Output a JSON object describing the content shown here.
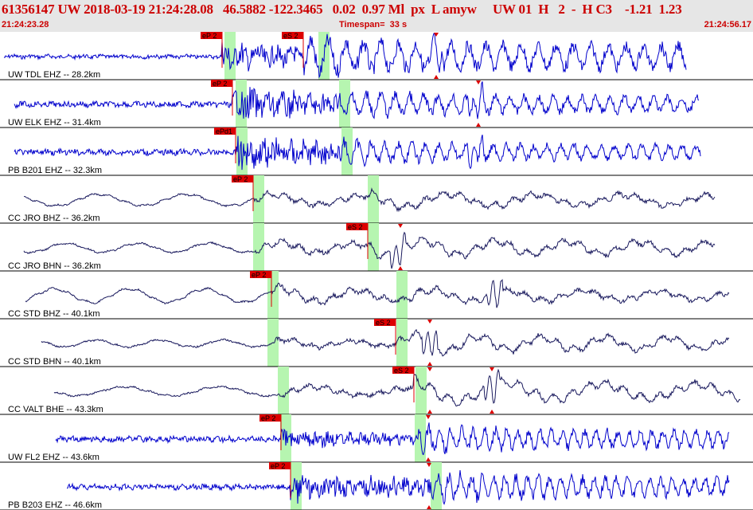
{
  "header": {
    "title": "61356147 UW 2018-03-19 21:24:28.08   46.5882 -122.3465   0.02  0.97 Ml  px  L amyw     UW 01  H   2  -  H C3    -1.21  1.23",
    "start_time": "21:24:23.28",
    "timespan": "Timespan=  33 s",
    "end_time": "21:24:56.17"
  },
  "colors": {
    "blue_trace": "#0000cc",
    "navy_trace": "#1a1a5e",
    "pick": "#dd0000",
    "window": "#b6f5b0",
    "header_text": "#cc0000"
  },
  "chart_data": {
    "type": "line",
    "title": "",
    "x_range": [
      0,
      946
    ],
    "channels": [
      {
        "label": "UW TDL EHZ -- 28.2km",
        "color": "blue",
        "start": 5,
        "end": 862,
        "p": 279,
        "s": 381,
        "amp": [
          3,
          22,
          30
        ],
        "period": 22,
        "bigs": 548,
        "picks": [
          {
            "type": "P",
            "x": 279,
            "text": "eP 2"
          },
          {
            "type": "S",
            "x": 381,
            "text": "eS 2"
          }
        ],
        "windows": [
          282,
          400
        ],
        "marks": [
          548
        ]
      },
      {
        "label": "UW ELK EHZ -- 31.4km",
        "color": "blue",
        "start": 18,
        "end": 878,
        "p": 292,
        "s": 425,
        "amp": [
          4,
          26,
          20
        ],
        "period": 18,
        "bigs": 598,
        "picks": [
          {
            "type": "P",
            "x": 292,
            "text": "eP 2"
          }
        ],
        "windows": [
          296,
          426
        ],
        "marks": [
          601
        ]
      },
      {
        "label": "PB B201 EHZ -- 32.3km",
        "color": "blue",
        "start": 18,
        "end": 880,
        "p": 296,
        "s": 430,
        "amp": [
          4,
          26,
          18
        ],
        "period": 17,
        "bigs": 598,
        "picks": [
          {
            "type": "P",
            "x": 296,
            "text": "ePd1"
          }
        ],
        "windows": [
          297,
          429
        ],
        "marks": []
      },
      {
        "label": "CC JRO BHZ -- 36.2km",
        "color": "navy",
        "start": 30,
        "end": 898,
        "p": 318,
        "s": 466,
        "amp": [
          10,
          12,
          14
        ],
        "period": 110,
        "bigs": 0,
        "picks": [
          {
            "type": "P",
            "x": 318,
            "text": "eP 2"
          }
        ],
        "windows": [
          318,
          462
        ],
        "marks": []
      },
      {
        "label": "CC JRO BHN -- 36.2km",
        "color": "navy",
        "start": 30,
        "end": 898,
        "p": 322,
        "s": 462,
        "amp": [
          8,
          12,
          16
        ],
        "period": 90,
        "bigs": 500,
        "picks": [
          {
            "type": "S",
            "x": 462,
            "text": "eS 2"
          }
        ],
        "windows": [
          318,
          462
        ],
        "marks": [
          503
        ]
      },
      {
        "label": "CC STD BHZ -- 40.1km",
        "color": "navy",
        "start": 32,
        "end": 916,
        "p": 341,
        "s": 500,
        "amp": [
          12,
          14,
          12
        ],
        "period": 95,
        "bigs": 622,
        "picks": [
          {
            "type": "P",
            "x": 341,
            "text": "eP 2"
          }
        ],
        "windows": [
          336,
          498
        ],
        "marks": []
      },
      {
        "label": "CC STD BHN -- 40.1km",
        "color": "navy",
        "start": 52,
        "end": 916,
        "p": 342,
        "s": 497,
        "amp": [
          6,
          8,
          16
        ],
        "period": 80,
        "bigs": 540,
        "picks": [
          {
            "type": "S",
            "x": 497,
            "text": "eS 2"
          }
        ],
        "windows": [
          336,
          498
        ],
        "marks": [
          540
        ]
      },
      {
        "label": "CC VALT BHE -- 43.3km",
        "color": "navy",
        "start": 68,
        "end": 930,
        "p": 352,
        "s": 520,
        "amp": [
          8,
          10,
          20
        ],
        "period": 120,
        "bigs": 618,
        "picks": [
          {
            "type": "S",
            "x": 520,
            "text": "eS 2"
          }
        ],
        "windows": [
          349,
          522
        ],
        "marks": [
          540,
          618
        ]
      },
      {
        "label": "UW FL2 EHZ -- 43.6km",
        "color": "blue",
        "start": 70,
        "end": 916,
        "p": 353,
        "s": 525,
        "amp": [
          4,
          14,
          20
        ],
        "period": 14,
        "bigs": 0,
        "picks": [
          {
            "type": "P",
            "x": 353,
            "text": "eP 2"
          }
        ],
        "windows": [
          352,
          521
        ],
        "marks": [
          538
        ]
      },
      {
        "label": "PB B203 EHZ -- 46.6km",
        "color": "blue",
        "start": 84,
        "end": 916,
        "p": 365,
        "s": 541,
        "amp": [
          4,
          22,
          22
        ],
        "period": 14,
        "bigs": 0,
        "picks": [
          {
            "type": "P",
            "x": 365,
            "text": "eP 2"
          }
        ],
        "windows": [
          365,
          541
        ],
        "marks": [
          539
        ]
      }
    ]
  }
}
